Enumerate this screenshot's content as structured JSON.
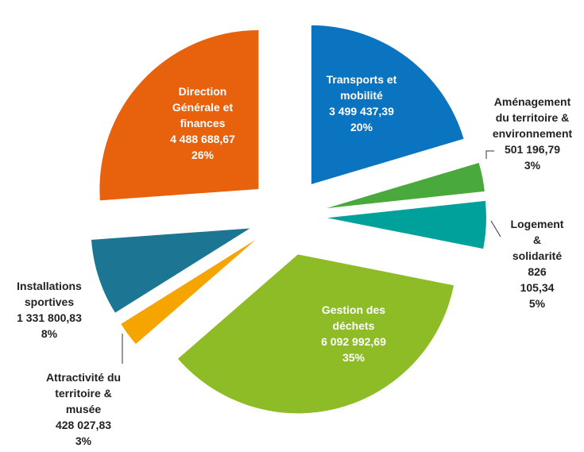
{
  "chart_data": {
    "type": "pie",
    "categories": [
      "Transports et\nmobilité",
      "Aménagement\ndu territoire &\nenvironnement",
      "Logement &\nsolidarité",
      "Gestion des\ndéchets",
      "Attractivité du\nterritoire &\nmusée",
      "Installations\nsportives",
      "Direction\nGénérale et\nfinances"
    ],
    "values": [
      3499437.39,
      501196.79,
      826105.34,
      6092992.69,
      428027.83,
      1331800.83,
      4488688.67
    ],
    "value_labels": [
      "3 499 437,39",
      "501 196,79",
      "826 105,34",
      "6 092 992,69",
      "428 027,83",
      "1 331 800,83",
      "4 488 688,67"
    ],
    "percentages": [
      20,
      3,
      5,
      35,
      3,
      8,
      26
    ],
    "percentage_labels": [
      "20%",
      "3%",
      "5%",
      "35%",
      "3%",
      "8%",
      "26%"
    ],
    "colors": [
      "#0a74c1",
      "#4aa93c",
      "#00a19a",
      "#8dbc26",
      "#f5a400",
      "#1c7592",
      "#e8620d"
    ]
  }
}
